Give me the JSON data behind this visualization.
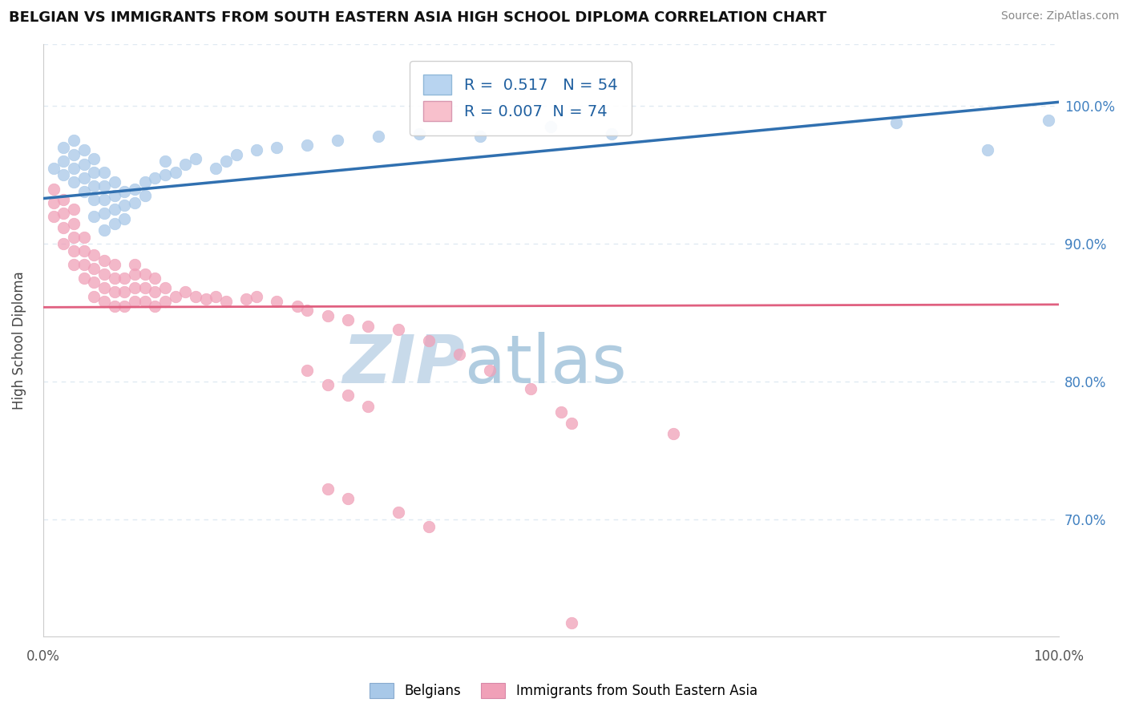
{
  "title": "BELGIAN VS IMMIGRANTS FROM SOUTH EASTERN ASIA HIGH SCHOOL DIPLOMA CORRELATION CHART",
  "source": "Source: ZipAtlas.com",
  "ylabel": "High School Diploma",
  "xlabel": "",
  "xlim": [
    0.0,
    1.0
  ],
  "ylim": [
    0.615,
    1.045
  ],
  "yticks": [
    0.7,
    0.8,
    0.9,
    1.0
  ],
  "ytick_labels": [
    "70.0%",
    "80.0%",
    "90.0%",
    "100.0%"
  ],
  "blue_R": 0.517,
  "blue_N": 54,
  "pink_R": 0.007,
  "pink_N": 74,
  "blue_color": "#a8c8e8",
  "blue_line_color": "#3070b0",
  "pink_color": "#f0a0b8",
  "pink_line_color": "#e06080",
  "legend_blue_fill": "#b8d4f0",
  "legend_pink_fill": "#f8c0cc",
  "watermark_zip": "ZIP",
  "watermark_atlas": "atlas",
  "watermark_color": "#d8e8f4",
  "grid_color": "#e0eaf2",
  "grid_dash": [
    4,
    4
  ],
  "blue_scatter_x": [
    0.01,
    0.02,
    0.02,
    0.02,
    0.03,
    0.03,
    0.03,
    0.03,
    0.04,
    0.04,
    0.04,
    0.04,
    0.05,
    0.05,
    0.05,
    0.05,
    0.05,
    0.06,
    0.06,
    0.06,
    0.06,
    0.06,
    0.07,
    0.07,
    0.07,
    0.07,
    0.08,
    0.08,
    0.08,
    0.09,
    0.09,
    0.1,
    0.1,
    0.11,
    0.12,
    0.12,
    0.13,
    0.14,
    0.15,
    0.17,
    0.18,
    0.19,
    0.21,
    0.23,
    0.26,
    0.29,
    0.33,
    0.37,
    0.43,
    0.5,
    0.56,
    0.84,
    0.93,
    0.99
  ],
  "blue_scatter_y": [
    0.955,
    0.95,
    0.96,
    0.97,
    0.945,
    0.955,
    0.965,
    0.975,
    0.938,
    0.948,
    0.958,
    0.968,
    0.92,
    0.932,
    0.942,
    0.952,
    0.962,
    0.91,
    0.922,
    0.932,
    0.942,
    0.952,
    0.915,
    0.925,
    0.935,
    0.945,
    0.918,
    0.928,
    0.938,
    0.93,
    0.94,
    0.935,
    0.945,
    0.948,
    0.95,
    0.96,
    0.952,
    0.958,
    0.962,
    0.955,
    0.96,
    0.965,
    0.968,
    0.97,
    0.972,
    0.975,
    0.978,
    0.98,
    0.978,
    0.985,
    0.98,
    0.988,
    0.968,
    0.99
  ],
  "pink_scatter_x": [
    0.01,
    0.01,
    0.01,
    0.02,
    0.02,
    0.02,
    0.02,
    0.03,
    0.03,
    0.03,
    0.03,
    0.03,
    0.04,
    0.04,
    0.04,
    0.04,
    0.05,
    0.05,
    0.05,
    0.05,
    0.06,
    0.06,
    0.06,
    0.06,
    0.07,
    0.07,
    0.07,
    0.07,
    0.08,
    0.08,
    0.08,
    0.09,
    0.09,
    0.09,
    0.09,
    0.1,
    0.1,
    0.1,
    0.11,
    0.11,
    0.11,
    0.12,
    0.12,
    0.13,
    0.14,
    0.15,
    0.16,
    0.17,
    0.18,
    0.2,
    0.21,
    0.23,
    0.25,
    0.26,
    0.28,
    0.3,
    0.32,
    0.35,
    0.38,
    0.41,
    0.44,
    0.48,
    0.51,
    0.26,
    0.28,
    0.3,
    0.32,
    0.62,
    0.28,
    0.3,
    0.35,
    0.38,
    0.52,
    0.52
  ],
  "pink_scatter_y": [
    0.92,
    0.93,
    0.94,
    0.9,
    0.912,
    0.922,
    0.932,
    0.885,
    0.895,
    0.905,
    0.915,
    0.925,
    0.875,
    0.885,
    0.895,
    0.905,
    0.862,
    0.872,
    0.882,
    0.892,
    0.858,
    0.868,
    0.878,
    0.888,
    0.855,
    0.865,
    0.875,
    0.885,
    0.855,
    0.865,
    0.875,
    0.858,
    0.868,
    0.878,
    0.885,
    0.858,
    0.868,
    0.878,
    0.855,
    0.865,
    0.875,
    0.858,
    0.868,
    0.862,
    0.865,
    0.862,
    0.86,
    0.862,
    0.858,
    0.86,
    0.862,
    0.858,
    0.855,
    0.852,
    0.848,
    0.845,
    0.84,
    0.838,
    0.83,
    0.82,
    0.808,
    0.795,
    0.778,
    0.808,
    0.798,
    0.79,
    0.782,
    0.762,
    0.722,
    0.715,
    0.705,
    0.695,
    0.77,
    0.625
  ]
}
